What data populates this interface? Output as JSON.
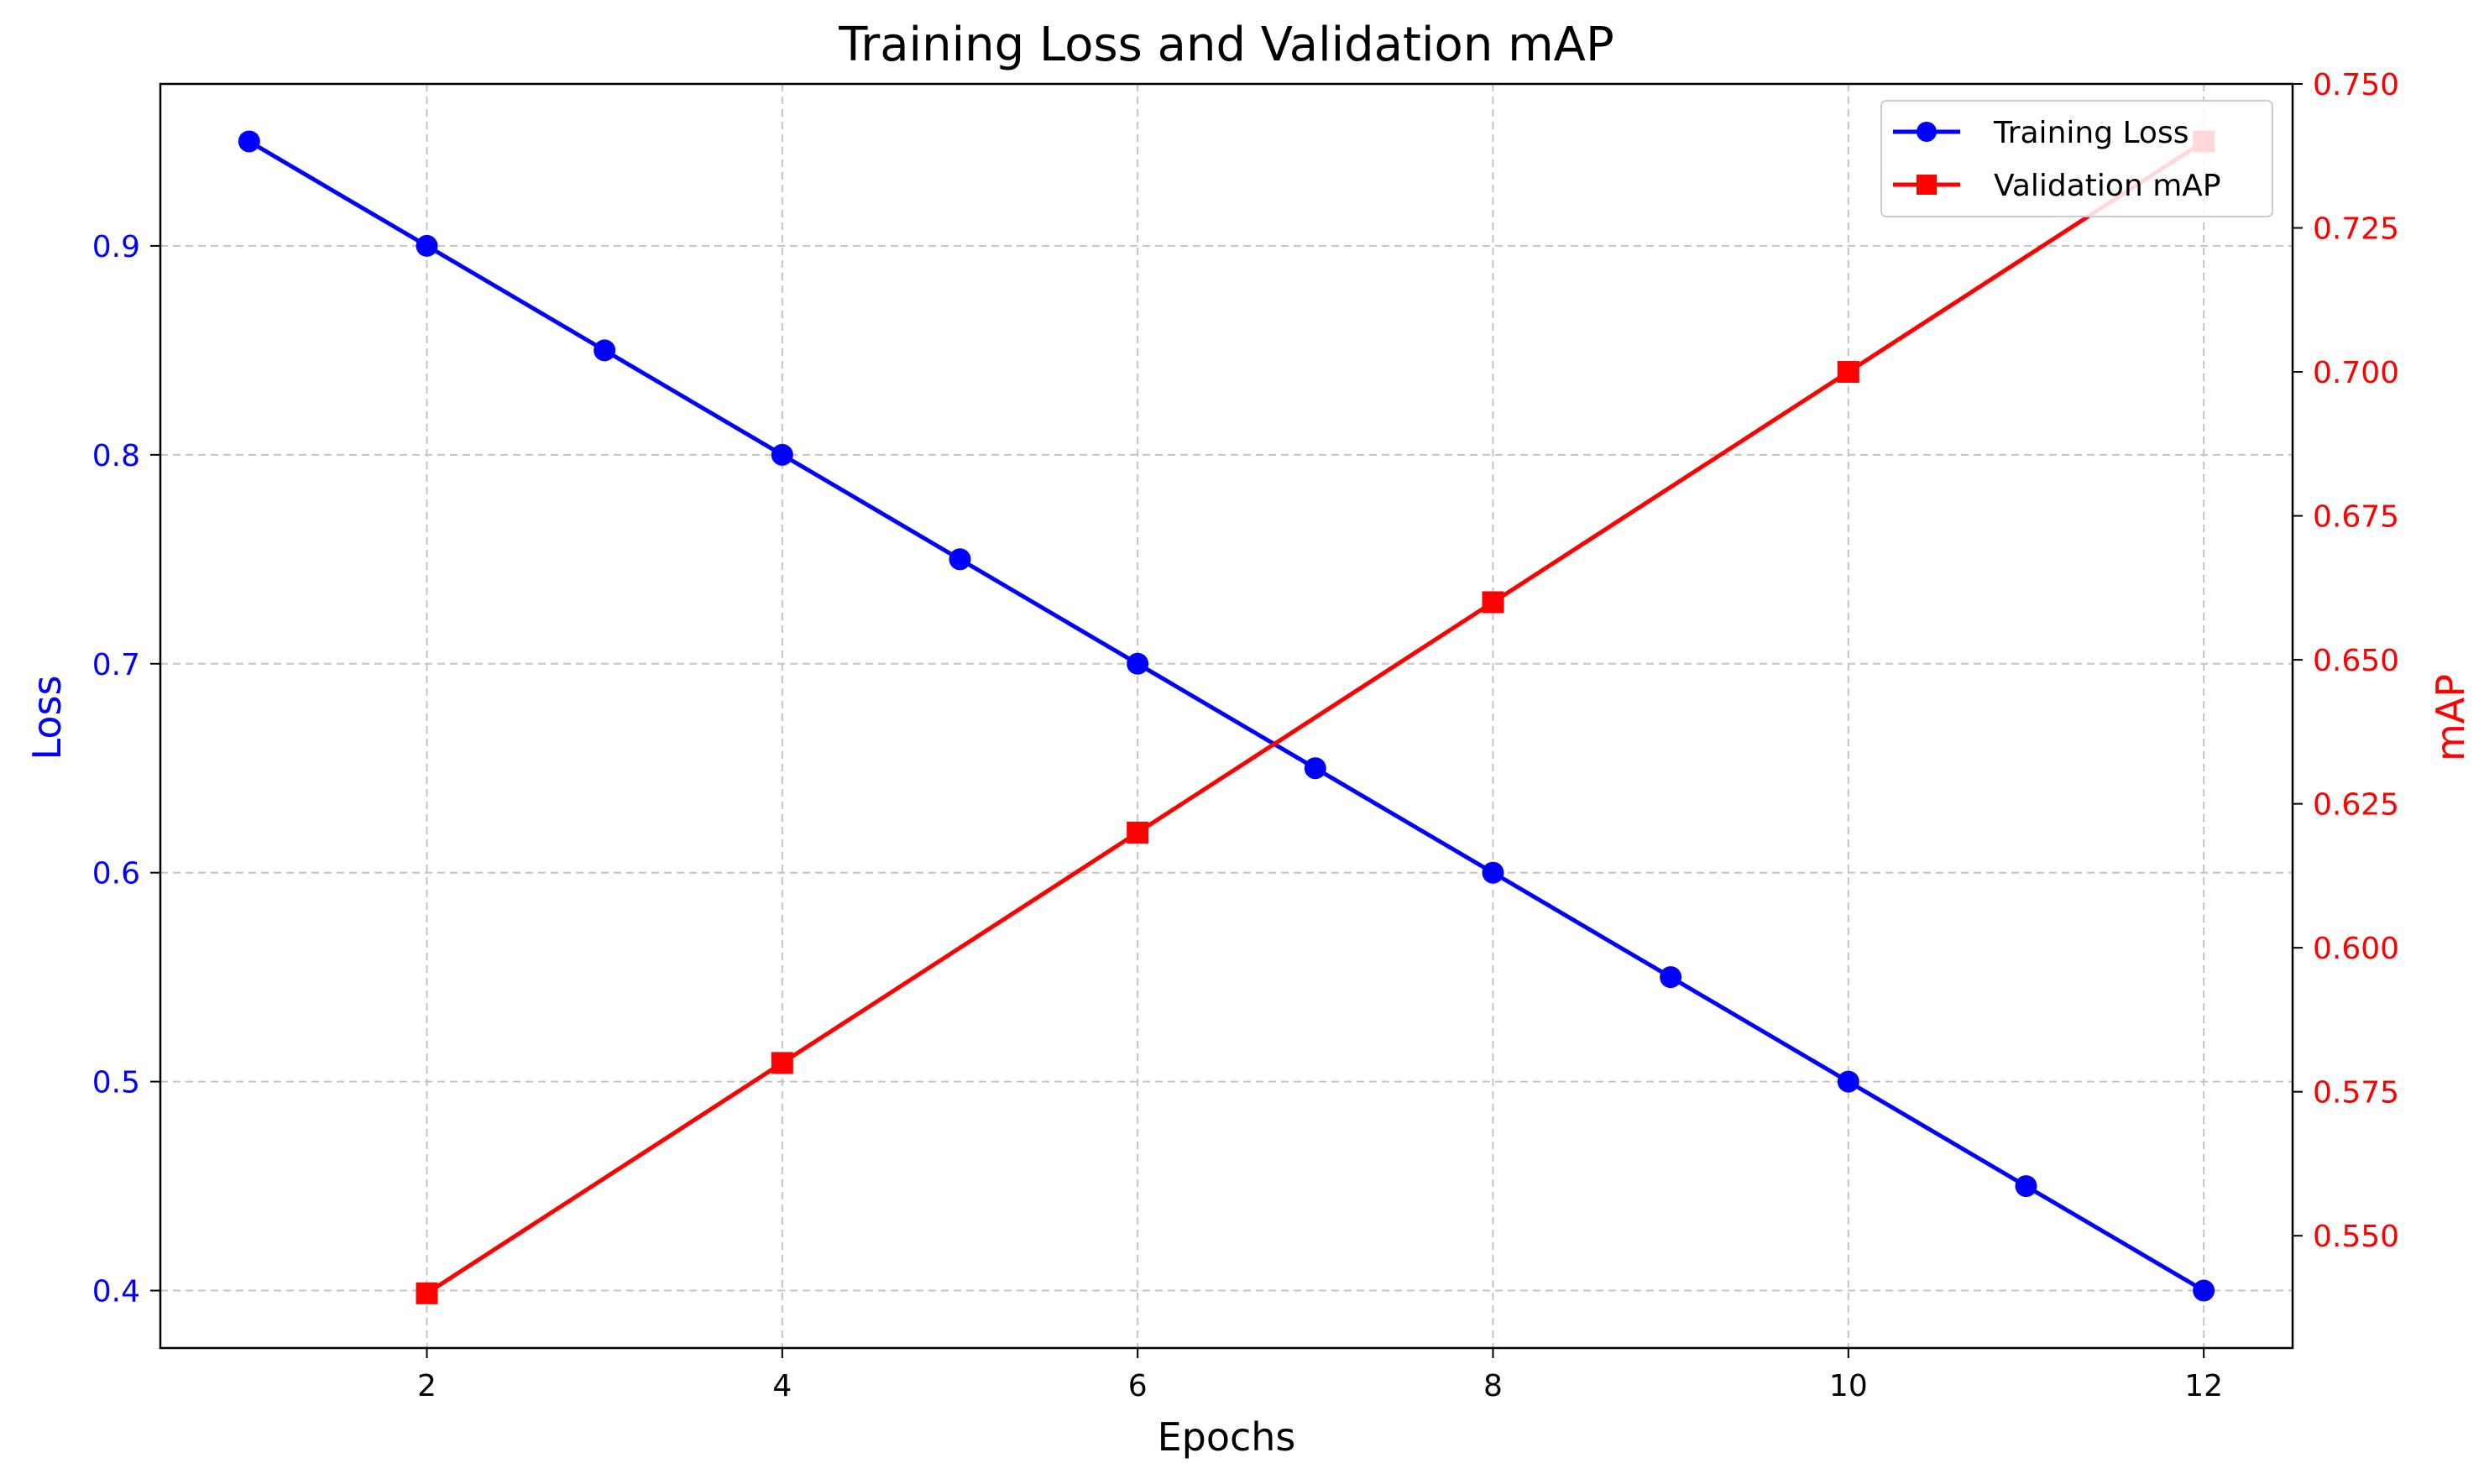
{
  "chart_data": {
    "type": "line",
    "title": "Training Loss and Validation mAP",
    "xlabel": "Epochs",
    "ylabel_left": "Loss",
    "ylabel_right": "mAP",
    "xlim": [
      0.5,
      12.5
    ],
    "ylim_left": [
      0.3725,
      0.9775
    ],
    "ylim_right": [
      0.5305,
      0.75
    ],
    "xticks": [
      2,
      4,
      6,
      8,
      10,
      12
    ],
    "yticks_left": [
      0.4,
      0.5,
      0.6,
      0.7,
      0.8,
      0.9
    ],
    "yticks_right": [
      0.55,
      0.575,
      0.6,
      0.625,
      0.65,
      0.675,
      0.7,
      0.725,
      0.75
    ],
    "grid": true,
    "legend_position": "top-right",
    "series": [
      {
        "name": "Training Loss",
        "axis": "left",
        "color": "#0000ff",
        "marker": "circle",
        "x": [
          1,
          2,
          3,
          4,
          5,
          6,
          7,
          8,
          9,
          10,
          11,
          12
        ],
        "values": [
          0.95,
          0.9,
          0.85,
          0.8,
          0.75,
          0.7,
          0.65,
          0.6,
          0.55,
          0.5,
          0.45,
          0.4
        ]
      },
      {
        "name": "Validation mAP",
        "axis": "right",
        "color": "#ff0000",
        "marker": "square",
        "x": [
          2,
          4,
          6,
          8,
          10,
          12
        ],
        "values": [
          0.54,
          0.58,
          0.62,
          0.66,
          0.7,
          0.74
        ]
      }
    ]
  },
  "axis_colors": {
    "left": "#0000ff",
    "right": "#ff0000",
    "frame": "#000000",
    "grid": "#c4c4c4"
  }
}
